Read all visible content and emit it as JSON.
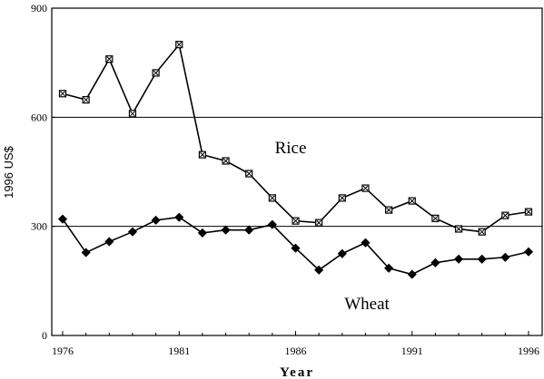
{
  "chart_data": {
    "type": "line",
    "title": "",
    "xlabel": "Year",
    "ylabel": "1996 US$",
    "xlim": [
      1976,
      1996
    ],
    "ylim": [
      0,
      900
    ],
    "x_ticks": [
      "1976",
      "1981",
      "1986",
      "1991",
      "1996"
    ],
    "y_ticks": [
      "0",
      "300",
      "600",
      "900"
    ],
    "grid": "horizontal lines at 300 and 600",
    "legend": "none (direct labels)",
    "annotations": [
      {
        "text": "Rice",
        "x": 1986.5,
        "y": 500
      },
      {
        "text": "Wheat",
        "x": 1991,
        "y": 80
      }
    ],
    "x": [
      1976,
      1977,
      1978,
      1979,
      1980,
      1981,
      1982,
      1983,
      1984,
      1985,
      1986,
      1987,
      1988,
      1989,
      1990,
      1991,
      1992,
      1993,
      1994,
      1995,
      1996
    ],
    "series": [
      {
        "name": "Rice",
        "marker": "square-x",
        "values": [
          665,
          648,
          760,
          610,
          722,
          800,
          497,
          480,
          445,
          378,
          315,
          310,
          378,
          405,
          345,
          370,
          322,
          293,
          285,
          330,
          340
        ]
      },
      {
        "name": "Wheat",
        "marker": "diamond",
        "values": [
          320,
          228,
          258,
          285,
          317,
          325,
          282,
          290,
          290,
          305,
          240,
          180,
          225,
          255,
          185,
          168,
          200,
          210,
          210,
          215,
          230
        ]
      }
    ]
  }
}
